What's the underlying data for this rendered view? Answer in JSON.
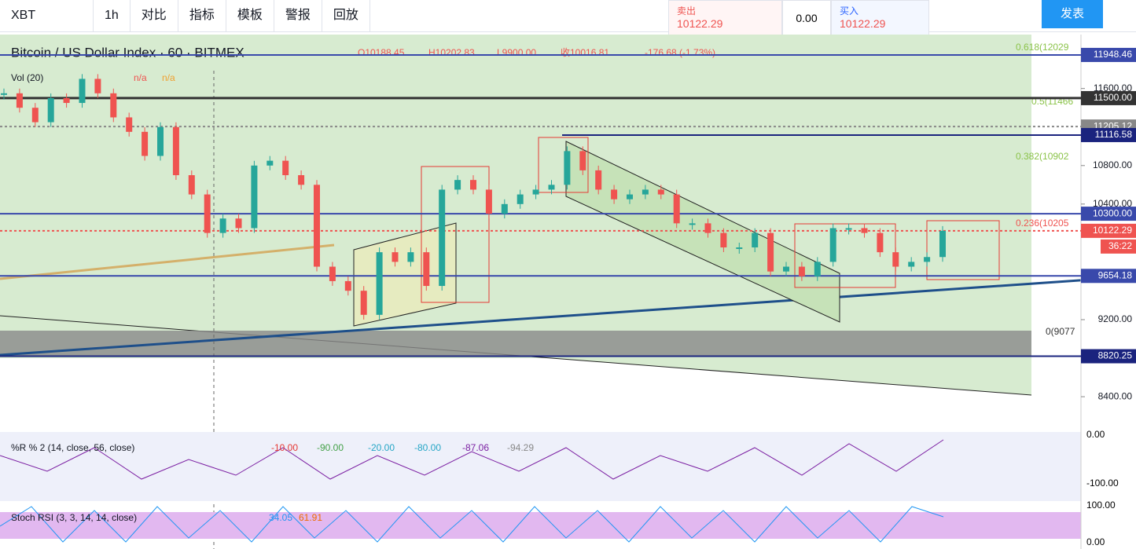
{
  "toolbar": {
    "symbol": "XBT",
    "interval": "1h",
    "compare": "对比",
    "indicators": "指标",
    "templates": "模板",
    "alert": "警报",
    "replay": "回放",
    "sell_label": "卖出",
    "sell_price": "10122.29",
    "spread": "0.00",
    "buy_label": "买入",
    "buy_price": "10122.29",
    "publish": "发表"
  },
  "legend": {
    "title": "Bitcoin / US Dollar Index · 60 · BITMEX",
    "open": "O10188.45",
    "high": "H10202.83",
    "low": "L9900.00",
    "close": "收10016.81",
    "change": "-176.68 (-1.73%)",
    "volume": "Vol (20)",
    "vol_a": "n/a",
    "vol_b": "n/a"
  },
  "fib_labels": [
    "0.618(12029",
    "0.5(11466",
    "0.382(10902",
    "0.236(10205",
    "0(9077"
  ],
  "wr_pane": {
    "title": "%R % 2 (14, close, 56, close)",
    "values": [
      "-10.00",
      "-90.00",
      "-20.00",
      "-80.00",
      "-87.06",
      "-94.29"
    ],
    "ticks": [
      "0.00",
      "-100.00"
    ]
  },
  "rsi_pane": {
    "title": "Stoch RSI (3, 3, 14, 14, close)",
    "values": [
      "34.05",
      "61.91"
    ],
    "ticks": [
      "100.00",
      "0.00"
    ]
  },
  "timer": "36:22",
  "chart_data": {
    "type": "candlestick",
    "up_color": "#26a69a",
    "down_color": "#ef5350",
    "values": [
      11550,
      11400,
      11250,
      11500,
      11450,
      11700,
      11550,
      11300,
      11150,
      10900,
      11200,
      10700,
      10500,
      10100,
      10250,
      10150,
      10800,
      10850,
      10700,
      10600,
      9750,
      9600,
      9500,
      9250,
      9900,
      9800,
      9900,
      9550,
      10550,
      10650,
      10550,
      10300,
      10400,
      10500,
      10550,
      10600,
      10950,
      10750,
      10550,
      10450,
      10500,
      10550,
      10500,
      10200,
      10200,
      10100,
      9950,
      9950,
      10100,
      9700,
      9750,
      9650,
      9800,
      10150,
      10150,
      10100,
      9900,
      9750,
      9800,
      9850,
      10122.29
    ],
    "ylim": [
      8050,
      12160
    ],
    "yticks": [
      {
        "value": 11600,
        "label": "11600.00"
      },
      {
        "value": 10800,
        "label": "10800.00"
      },
      {
        "value": 10400,
        "label": "10400.00"
      },
      {
        "value": 9200,
        "label": "9200.00"
      },
      {
        "value": 8400,
        "label": "8400.00"
      }
    ],
    "levels": [
      {
        "value": 11948.46,
        "label": "11948.46",
        "color": "#3949ab"
      },
      {
        "value": 11500,
        "label": "11500.00",
        "color": "#333333"
      },
      {
        "value": 11205.12,
        "label": "11205.12",
        "color": "#888888"
      },
      {
        "value": 11116.58,
        "label": "11116.58",
        "color": "#1a237e"
      },
      {
        "value": 10300,
        "label": "10300.00",
        "color": "#3949ab"
      },
      {
        "value": 10122.29,
        "label": "10122.29",
        "color": "#ef5350"
      },
      {
        "value": 9654.18,
        "label": "9654.18",
        "color": "#3949ab"
      },
      {
        "value": 8820.25,
        "label": "8820.25",
        "color": "#1a237e"
      }
    ]
  }
}
